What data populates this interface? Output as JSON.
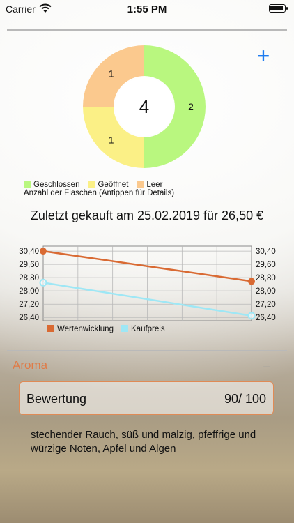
{
  "status_bar": {
    "carrier": "Carrier",
    "time": "1:55 PM"
  },
  "header": {
    "add_label": "+"
  },
  "bottle_chart": {
    "center_total": "4",
    "slices": [
      {
        "label": "2",
        "value": 2,
        "color": "#b9f77f",
        "category": "Geschlossen"
      },
      {
        "label": "1",
        "value": 1,
        "color": "#fbf086",
        "category": "Geöffnet"
      },
      {
        "label": "1",
        "value": 1,
        "color": "#fbc98e",
        "category": "Leer"
      }
    ],
    "legend": [
      {
        "label": "Geschlossen",
        "color": "#b9f77f"
      },
      {
        "label": "Geöffnet",
        "color": "#fbf086"
      },
      {
        "label": "Leer",
        "color": "#fbc98e"
      }
    ],
    "description": "Anzahl der Flaschen (Antippen für Details)"
  },
  "last_purchase": "Zuletzt gekauft am 25.02.2019 für 26,50 €",
  "chart_data": {
    "type": "line",
    "x": [
      0,
      1
    ],
    "series": [
      {
        "name": "Wertenwicklung",
        "values": [
          30.4,
          28.58
        ],
        "color": "#d96a33"
      },
      {
        "name": "Kaufpreis",
        "values": [
          28.5,
          26.5
        ],
        "color": "#9ee7f5"
      }
    ],
    "ylim": [
      26.2,
      30.7
    ],
    "y_ticks": [
      "30,40",
      "29,60",
      "28,80",
      "28,00",
      "27,20",
      "26,40"
    ],
    "y_tick_values": [
      30.4,
      29.6,
      28.8,
      28.0,
      27.2,
      26.4
    ],
    "grid": true,
    "legend_position": "bottom"
  },
  "aroma": {
    "section_title": "Aroma",
    "collapse_label": "–",
    "rating_label": "Bewertung",
    "rating_value": "90/ 100",
    "notes": "stechender Rauch, süß und malzig, pfeffrige und würzige Noten, Apfel und Algen"
  }
}
